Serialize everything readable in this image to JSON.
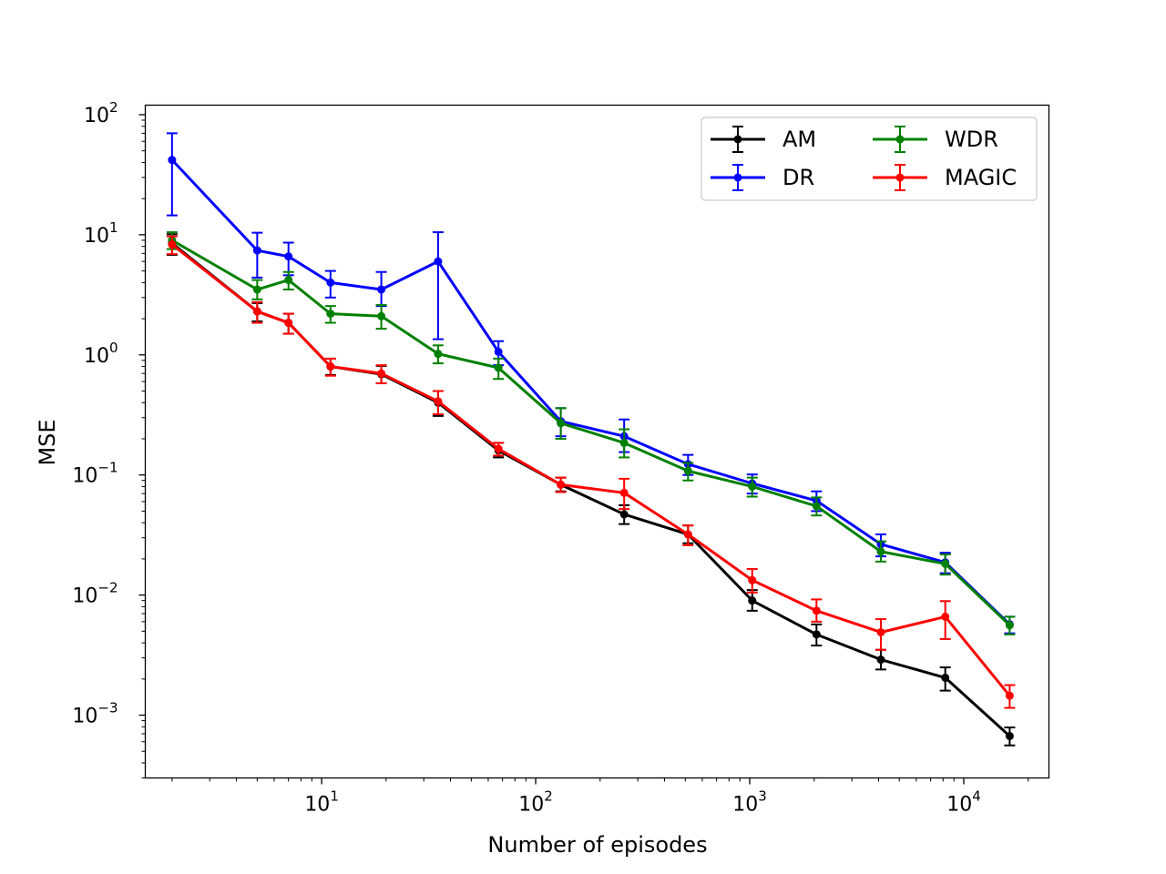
{
  "chart_data": {
    "type": "line",
    "title": "",
    "xlabel": "Number of episodes",
    "ylabel": "MSE",
    "xscale": "log",
    "yscale": "log",
    "xlim": [
      1.5,
      25000
    ],
    "ylim": [
      0.0003,
      120
    ],
    "grid": false,
    "legend_position": "upper right",
    "legend_columns": 2,
    "x_ticks": [
      {
        "value": 10,
        "mantissa": "10",
        "exp": "1"
      },
      {
        "value": 100,
        "mantissa": "10",
        "exp": "2"
      },
      {
        "value": 1000,
        "mantissa": "10",
        "exp": "3"
      },
      {
        "value": 10000,
        "mantissa": "10",
        "exp": "4"
      }
    ],
    "y_ticks": [
      {
        "value": 0.001,
        "mantissa": "10",
        "exp": "−3"
      },
      {
        "value": 0.01,
        "mantissa": "10",
        "exp": "−2"
      },
      {
        "value": 0.1,
        "mantissa": "10",
        "exp": "−1"
      },
      {
        "value": 1,
        "mantissa": "10",
        "exp": "0"
      },
      {
        "value": 10,
        "mantissa": "10",
        "exp": "1"
      },
      {
        "value": 100,
        "mantissa": "10",
        "exp": "2"
      }
    ],
    "x": [
      2,
      5,
      7,
      11,
      19,
      35,
      67,
      131,
      259,
      515,
      1027,
      2051,
      4099,
      8195,
      16387
    ],
    "series": [
      {
        "name": "AM",
        "color": "#000000",
        "values": [
          8.5,
          2.3,
          1.85,
          0.8,
          0.69,
          0.4,
          0.16,
          0.083,
          0.047,
          0.032,
          0.009,
          0.0047,
          0.0029,
          0.00205,
          0.00067
        ],
        "lower": [
          6.8,
          1.9,
          1.5,
          0.68,
          0.58,
          0.31,
          0.14,
          0.073,
          0.039,
          0.027,
          0.0074,
          0.0038,
          0.0024,
          0.0016,
          0.00056
        ],
        "upper": [
          10.1,
          2.7,
          2.2,
          0.93,
          0.81,
          0.5,
          0.185,
          0.095,
          0.056,
          0.038,
          0.011,
          0.0057,
          0.0035,
          0.0025,
          0.00079
        ]
      },
      {
        "name": "DR",
        "color": "#0000ff",
        "values": [
          42,
          7.4,
          6.6,
          4.0,
          3.5,
          6.0,
          1.06,
          0.28,
          0.21,
          0.123,
          0.085,
          0.061,
          0.0265,
          0.0187,
          0.0057
        ],
        "lower": [
          14.5,
          4.4,
          4.6,
          3.0,
          2.55,
          1.35,
          0.82,
          0.21,
          0.155,
          0.1,
          0.07,
          0.05,
          0.021,
          0.0152,
          0.0048
        ],
        "upper": [
          70,
          10.4,
          8.6,
          5.0,
          4.9,
          10.5,
          1.3,
          0.36,
          0.29,
          0.147,
          0.101,
          0.073,
          0.032,
          0.0225,
          0.0066
        ]
      },
      {
        "name": "WDR",
        "color": "#008000",
        "values": [
          9.0,
          3.5,
          4.2,
          2.2,
          2.1,
          1.02,
          0.78,
          0.27,
          0.185,
          0.108,
          0.08,
          0.055,
          0.023,
          0.0182,
          0.0056
        ],
        "lower": [
          7.6,
          2.9,
          3.5,
          1.85,
          1.65,
          0.85,
          0.63,
          0.2,
          0.14,
          0.09,
          0.066,
          0.046,
          0.019,
          0.0148,
          0.0047
        ],
        "upper": [
          10.5,
          4.2,
          4.9,
          2.55,
          2.6,
          1.2,
          0.93,
          0.36,
          0.24,
          0.126,
          0.095,
          0.065,
          0.028,
          0.0218,
          0.0066
        ]
      },
      {
        "name": "MAGIC",
        "color": "#ff0000",
        "values": [
          8.3,
          2.3,
          1.85,
          0.8,
          0.7,
          0.41,
          0.165,
          0.083,
          0.071,
          0.032,
          0.0133,
          0.0074,
          0.0049,
          0.0066,
          0.00145
        ],
        "lower": [
          6.9,
          1.85,
          1.5,
          0.67,
          0.58,
          0.32,
          0.145,
          0.072,
          0.052,
          0.026,
          0.0105,
          0.006,
          0.0035,
          0.0043,
          0.00115
        ],
        "upper": [
          9.7,
          2.75,
          2.2,
          0.93,
          0.82,
          0.5,
          0.185,
          0.095,
          0.093,
          0.038,
          0.0165,
          0.0092,
          0.0063,
          0.0089,
          0.00178
        ]
      }
    ]
  }
}
